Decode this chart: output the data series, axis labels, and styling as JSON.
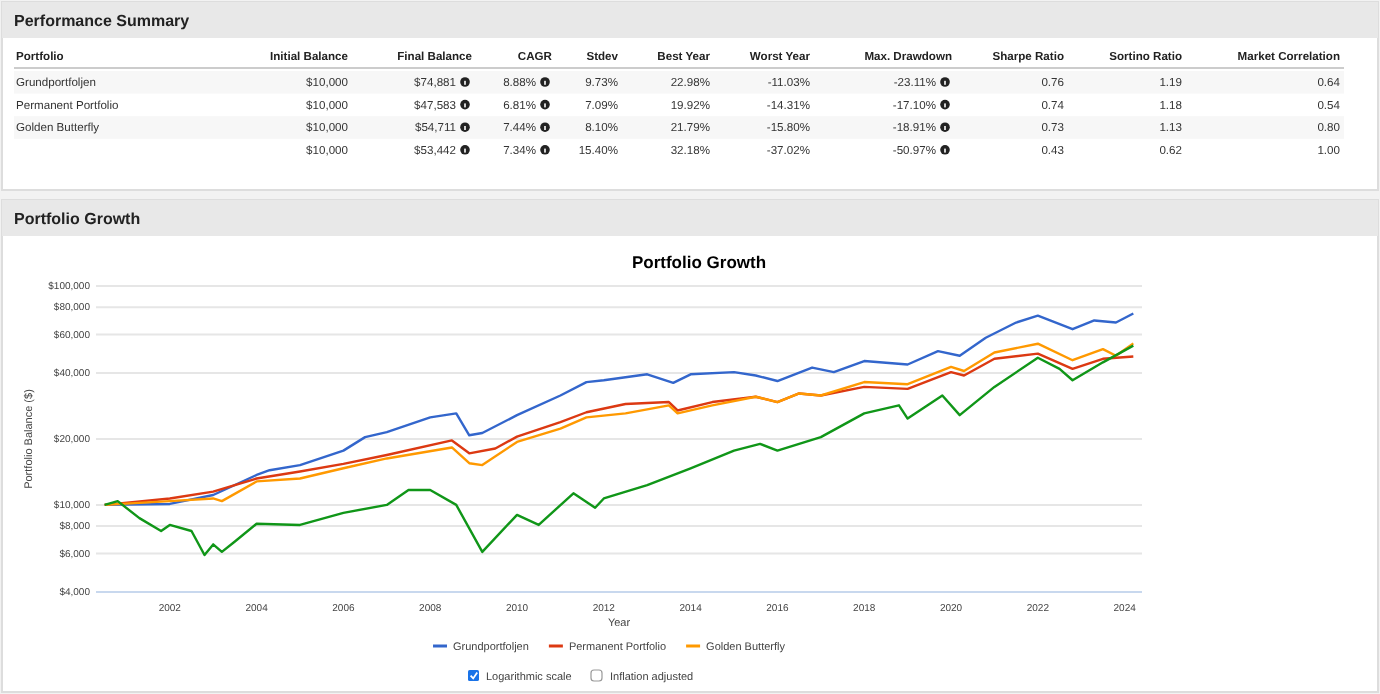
{
  "chart_data": [
    {
      "type": "other",
      "title": "Performance Summary",
      "categories": [
        "Portfolio",
        "Initial Balance",
        "Final Balance",
        "CAGR",
        "Stdev",
        "Best Year",
        "Worst Year",
        "Max. Drawdown",
        "Sharpe Ratio",
        "Sortino Ratio",
        "Market Correlation"
      ],
      "y_categories": [
        "Grundportfoljen",
        "Permanent Portfolio",
        "Golden Butterfly",
        null
      ],
      "cell_labels": [
        [
          "$10,000",
          "$74,881",
          "8.88%",
          "9.73%",
          "22.98%",
          "-11.03%",
          "-23.11%",
          "0.76",
          "1.19",
          "0.64"
        ],
        [
          "$10,000",
          "$47,583",
          "6.81%",
          "7.09%",
          "19.92%",
          "-14.31%",
          "-17.10%",
          "0.74",
          "1.18",
          "0.54"
        ],
        [
          "$10,000",
          "$54,711",
          "7.44%",
          "8.10%",
          "21.79%",
          "-15.80%",
          "-18.91%",
          "0.73",
          "1.13",
          "0.80"
        ],
        [
          "$10,000",
          "$53,442",
          "7.34%",
          "15.40%",
          "32.18%",
          "-37.02%",
          "-50.97%",
          "0.43",
          "0.62",
          "1.00"
        ]
      ]
    },
    {
      "type": "line",
      "title": "Portfolio Growth",
      "xlabel": "Year",
      "ylabel": "Portfolio Balance ($)",
      "log": "y",
      "grid": "y",
      "legend": "bottom",
      "annotations": [
        "Portfolio Growth",
        "Logarithmic scale",
        "Inflation adjusted"
      ],
      "xlim": [
        2000.3,
        2024.4
      ],
      "xticks": [
        2002,
        2004,
        2006,
        2008,
        2010,
        2012,
        2014,
        2016,
        2018,
        2020,
        2022,
        2024
      ],
      "ylim": [
        4000,
        100000
      ],
      "yticks": [
        {
          "value": 4000,
          "label": "$4,000"
        },
        {
          "value": 6000,
          "label": "$6,000"
        },
        {
          "value": 8000,
          "label": "$8,000"
        },
        {
          "value": 10000,
          "label": "$10,000"
        },
        {
          "value": 20000,
          "label": "$20,000"
        },
        {
          "value": 40000,
          "label": "$40,000"
        },
        {
          "value": 60000,
          "label": "$60,000"
        },
        {
          "value": 80000,
          "label": "$80,000"
        },
        {
          "value": 100000,
          "label": "$100,000"
        }
      ],
      "series": [
        {
          "name": "Grundportfoljen",
          "color": "#3366cc",
          "x": [
            2000.5,
            2002,
            2003,
            2004,
            2004.3,
            2005,
            2006,
            2006.5,
            2007,
            2008,
            2008.6,
            2008.9,
            2009.2,
            2010,
            2011,
            2011.6,
            2012,
            2013,
            2013.6,
            2014,
            2015,
            2015.5,
            2016,
            2016.8,
            2017.3,
            2018,
            2019,
            2019.7,
            2020.2,
            2020.8,
            2021.5,
            2022,
            2022.8,
            2023.3,
            2023.8,
            2024.2
          ],
          "values": [
            10000,
            10100,
            11100,
            13700,
            14400,
            15200,
            17700,
            20400,
            21500,
            25100,
            26200,
            20800,
            21300,
            25700,
            31600,
            36400,
            37100,
            39500,
            36100,
            39500,
            40400,
            39000,
            36800,
            42400,
            40400,
            45400,
            43800,
            50400,
            48000,
            58000,
            68100,
            73200,
            63500,
            69600,
            68100,
            74900
          ]
        },
        {
          "name": "Permanent Portfolio",
          "color": "#dc3912",
          "x": [
            2000.5,
            2002,
            2003,
            2004,
            2005,
            2006,
            2007,
            2008.5,
            2008.9,
            2009.5,
            2010,
            2011,
            2011.6,
            2012.5,
            2013.5,
            2013.7,
            2014.5,
            2015.5,
            2016,
            2016.5,
            2017,
            2018,
            2019,
            2020,
            2020.3,
            2021,
            2022,
            2022.8,
            2023.5,
            2024.2
          ],
          "values": [
            10000,
            10700,
            11500,
            13200,
            14200,
            15400,
            16900,
            19700,
            17200,
            18100,
            20500,
            23900,
            26500,
            28900,
            29500,
            27000,
            29500,
            31200,
            29500,
            32300,
            31600,
            34600,
            33900,
            40400,
            39000,
            46500,
            49100,
            41800,
            46500,
            47600
          ]
        },
        {
          "name": "Golden Butterfly",
          "color": "#ff9900",
          "x": [
            2000.5,
            2002,
            2003,
            2003.2,
            2004,
            2005,
            2006,
            2007,
            2008.5,
            2008.9,
            2009.2,
            2010,
            2011,
            2011.6,
            2012.5,
            2013.5,
            2013.7,
            2014.5,
            2015.5,
            2016,
            2016.5,
            2017,
            2018,
            2019,
            2020,
            2020.3,
            2021,
            2022,
            2022.8,
            2023.5,
            2023.8,
            2024.2
          ],
          "values": [
            10000,
            10400,
            10700,
            10400,
            12800,
            13200,
            14700,
            16300,
            18300,
            15500,
            15200,
            19400,
            22300,
            25100,
            26200,
            28500,
            26200,
            28500,
            31200,
            29500,
            32300,
            31600,
            36400,
            35600,
            42700,
            40900,
            49700,
            54500,
            45800,
            51500,
            48000,
            54700
          ]
        },
        {
          "color": "#109618",
          "x": [
            2000.5,
            2000.8,
            2001.3,
            2001.8,
            2002,
            2002.5,
            2002.8,
            2003,
            2003.2,
            2003.5,
            2004,
            2005,
            2006,
            2007,
            2007.5,
            2008,
            2008.6,
            2009.2,
            2010,
            2010.5,
            2011.3,
            2011.8,
            2012,
            2013,
            2014,
            2015,
            2015.6,
            2016,
            2017,
            2018,
            2018.8,
            2019,
            2019.8,
            2020.2,
            2021,
            2022,
            2022.5,
            2022.8,
            2023.5,
            2024.2
          ],
          "values": [
            10000,
            10400,
            8700,
            7600,
            8100,
            7600,
            5900,
            6600,
            6100,
            6800,
            8200,
            8100,
            9200,
            10000,
            11700,
            11700,
            10000,
            6100,
            9000,
            8100,
            11300,
            9700,
            10700,
            12300,
            14700,
            17700,
            19000,
            17700,
            20400,
            26200,
            28500,
            24800,
            31600,
            25700,
            34600,
            47000,
            41800,
            37100,
            44800,
            53400
          ]
        }
      ]
    }
  ]
}
